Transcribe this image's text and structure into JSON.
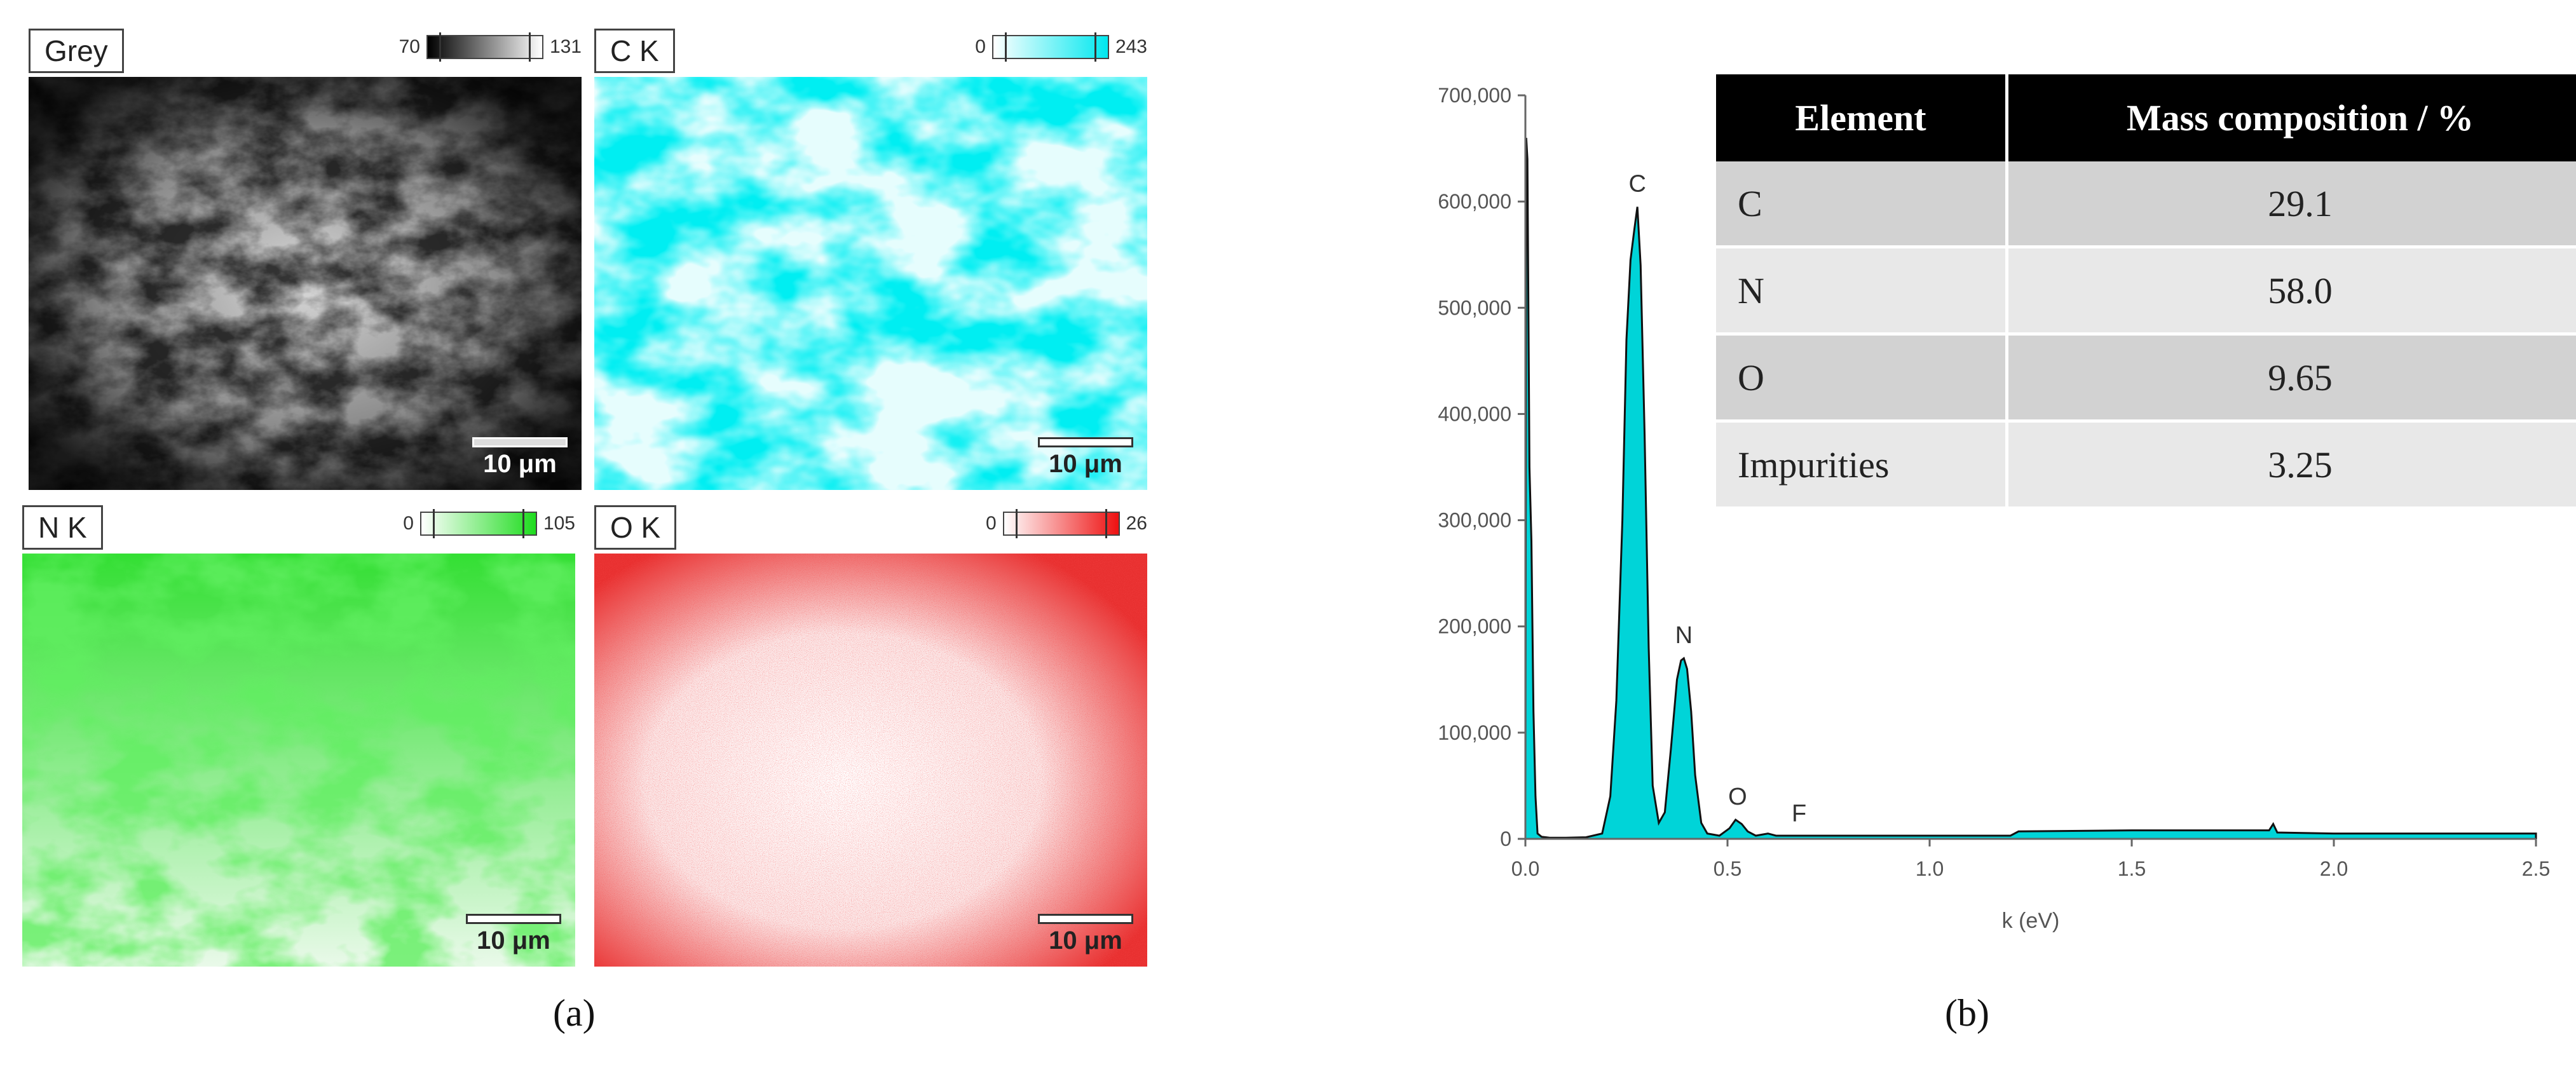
{
  "maps": [
    {
      "label": "Grey",
      "cmin": "70",
      "cmax": "131",
      "gradient": [
        "#000000",
        "#ffffff"
      ],
      "scale": "10 μm"
    },
    {
      "label": "C K",
      "cmin": "0",
      "cmax": "243",
      "gradient": [
        "#ffffff",
        "#00e8ef"
      ],
      "scale": "10 μm"
    },
    {
      "label": "N K",
      "cmin": "0",
      "cmax": "105",
      "gradient": [
        "#ffffff",
        "#1edc1e"
      ],
      "scale": "10 μm"
    },
    {
      "label": "O K",
      "cmin": "0",
      "cmax": "26",
      "gradient": [
        "#ffffff",
        "#ee1111"
      ],
      "scale": "10 μm"
    }
  ],
  "panel_labels": {
    "a": "(a)",
    "b": "(b)"
  },
  "table": {
    "headers": [
      "Element",
      "Mass composition / %"
    ],
    "rows": [
      {
        "element": "C",
        "mass": "29.1"
      },
      {
        "element": "N",
        "mass": "58.0"
      },
      {
        "element": "O",
        "mass": "9.65"
      },
      {
        "element": "Impurities",
        "mass": "3.25"
      }
    ]
  },
  "chart_data": {
    "type": "area",
    "xlabel": "k (eV)",
    "ylabel": "",
    "xlim": [
      0.0,
      2.5
    ],
    "ylim": [
      0,
      700000
    ],
    "x_ticks": [
      "0.0",
      "0.5",
      "1.0",
      "1.5",
      "2.0",
      "2.5"
    ],
    "y_ticks": [
      "0",
      "100,000",
      "200,000",
      "300,000",
      "400,000",
      "500,000",
      "600,000",
      "700,000"
    ],
    "fill_color": "#00d4d8",
    "peak_labels": [
      {
        "label": "C",
        "x": 0.277,
        "y": 595000
      },
      {
        "label": "N",
        "x": 0.392,
        "y": 170000
      },
      {
        "label": "O",
        "x": 0.525,
        "y": 18000
      },
      {
        "label": "F",
        "x": 0.677,
        "y": 2000
      }
    ],
    "series": [
      {
        "x": [
          0.0,
          0.002,
          0.005,
          0.01,
          0.015,
          0.02,
          0.025,
          0.03,
          0.04,
          0.06,
          0.1,
          0.15,
          0.19,
          0.21,
          0.225,
          0.24,
          0.25,
          0.26,
          0.27,
          0.277,
          0.285,
          0.295,
          0.305,
          0.315,
          0.33,
          0.345,
          0.36,
          0.375,
          0.385,
          0.392,
          0.4,
          0.41,
          0.42,
          0.435,
          0.45,
          0.48,
          0.505,
          0.52,
          0.535,
          0.55,
          0.57,
          0.6,
          0.62,
          0.65,
          0.7,
          0.9,
          1.2,
          1.22,
          1.5,
          1.84,
          1.85,
          1.86,
          2.0,
          2.5
        ],
        "y": [
          20000,
          660000,
          640000,
          350000,
          280000,
          120000,
          40000,
          5000,
          2000,
          1000,
          1000,
          1500,
          5000,
          40000,
          130000,
          300000,
          470000,
          545000,
          575000,
          595000,
          540000,
          380000,
          180000,
          50000,
          15000,
          25000,
          85000,
          150000,
          168000,
          170000,
          160000,
          120000,
          60000,
          15000,
          5000,
          3000,
          10000,
          18000,
          14000,
          7000,
          3000,
          5000,
          3000,
          3000,
          3000,
          3000,
          3000,
          7000,
          8000,
          8000,
          14000,
          6000,
          5000,
          5000
        ]
      }
    ]
  }
}
